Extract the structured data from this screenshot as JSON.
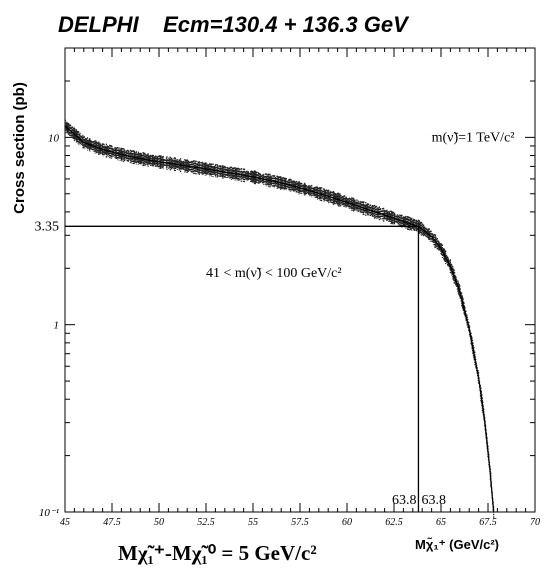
{
  "chart_data": {
    "type": "line",
    "title": "DELPHI    Ecm=130.4 + 136.3 GeV",
    "ylabel": "Cross section (pb)",
    "xlabel": "Mχ̃₁⁺-Mχ̃₁⁰ = 5 GeV/c²",
    "xaxis_unit_label": "Mχ̃₁⁺ (GeV/c²)",
    "yscale": "log",
    "xlim": [
      45,
      70
    ],
    "ylim": [
      0.1,
      30
    ],
    "x_ticks": [
      "45",
      "47.5",
      "50",
      "52.5",
      "55",
      "57.5",
      "60",
      "62.5",
      "65",
      "67.5",
      "70"
    ],
    "y_ticks": [
      {
        "value": 10,
        "label": "10"
      },
      {
        "value": 3.35,
        "label": "3.35"
      },
      {
        "value": 1,
        "label": "1"
      },
      {
        "value": 0.1,
        "label": "10⁻¹"
      }
    ],
    "annotations": [
      {
        "text": "m(ν̃)=1 TeV/c²",
        "x": 64.5,
        "y": 9.5
      },
      {
        "text": "41 < m(ν̃) < 100 GeV/c²",
        "x": 52.5,
        "y": 1.8
      }
    ],
    "reference": {
      "y": 3.35,
      "x": 63.8,
      "x_labels": [
        "63.8",
        "63.8"
      ]
    },
    "series": [
      {
        "x": [
          45,
          46,
          47,
          48,
          49,
          50,
          51,
          52,
          53,
          54,
          55,
          56,
          57,
          58,
          59,
          60,
          61,
          62,
          63,
          63.8,
          64.5,
          65,
          65.5,
          66,
          66.5,
          67,
          67.3,
          67.6,
          67.8
        ],
        "y": [
          11.5,
          9.4,
          8.6,
          8.1,
          7.7,
          7.4,
          7.15,
          6.9,
          6.65,
          6.4,
          6.15,
          5.85,
          5.55,
          5.2,
          4.85,
          4.5,
          4.15,
          3.85,
          3.55,
          3.35,
          2.95,
          2.55,
          2.05,
          1.5,
          0.95,
          0.52,
          0.32,
          0.17,
          0.1
        ]
      }
    ]
  }
}
